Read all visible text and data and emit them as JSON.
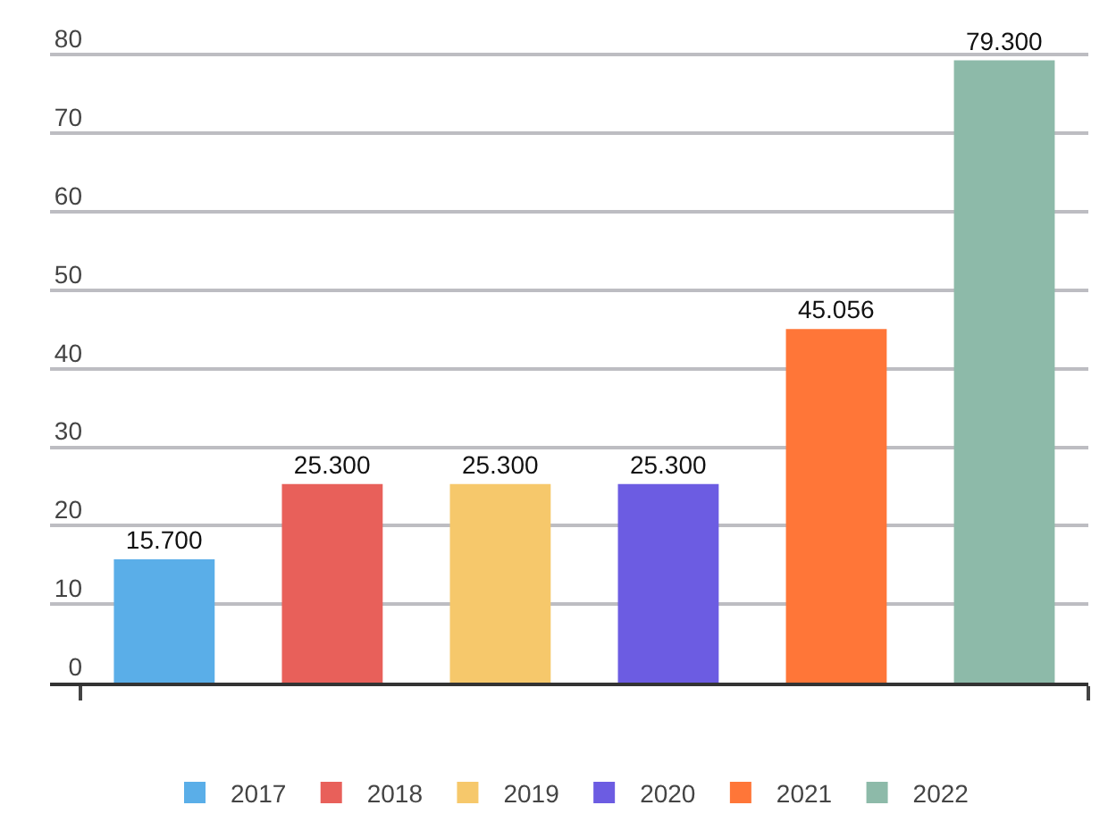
{
  "chart_data": {
    "type": "bar",
    "categories": [
      null,
      null,
      null,
      null,
      null,
      null
    ],
    "series": [
      {
        "name": "2017",
        "color": "#5aaee8",
        "values": [
          15.7,
          null,
          null,
          null,
          null,
          null
        ],
        "value_labels": [
          "15.700",
          null,
          null,
          null,
          null,
          null
        ]
      },
      {
        "name": "2018",
        "color": "#e8605a",
        "values": [
          null,
          25.3,
          null,
          null,
          null,
          null
        ],
        "value_labels": [
          null,
          "25.300",
          null,
          null,
          null,
          null
        ]
      },
      {
        "name": "2019",
        "color": "#f6c86b",
        "values": [
          null,
          null,
          25.3,
          null,
          null,
          null
        ],
        "value_labels": [
          null,
          null,
          "25.300",
          null,
          null,
          null
        ]
      },
      {
        "name": "2020",
        "color": "#6c5ce2",
        "values": [
          null,
          null,
          null,
          25.3,
          null,
          null
        ],
        "value_labels": [
          null,
          null,
          null,
          "25.300",
          null,
          null
        ]
      },
      {
        "name": "2021",
        "color": "#ff7638",
        "values": [
          null,
          null,
          null,
          null,
          45.056,
          null
        ],
        "value_labels": [
          null,
          null,
          null,
          null,
          "45.056",
          null
        ]
      },
      {
        "name": "2022",
        "color": "#8dbaa9",
        "values": [
          null,
          null,
          null,
          null,
          null,
          79.3
        ],
        "value_labels": [
          null,
          null,
          null,
          null,
          null,
          "79.300"
        ]
      }
    ],
    "ylim": [
      0,
      87
    ],
    "yticks": [
      0,
      10,
      20,
      30,
      40,
      50,
      60,
      70,
      80
    ],
    "grid": "y",
    "legend": "bottom",
    "tick_labels": "y"
  }
}
